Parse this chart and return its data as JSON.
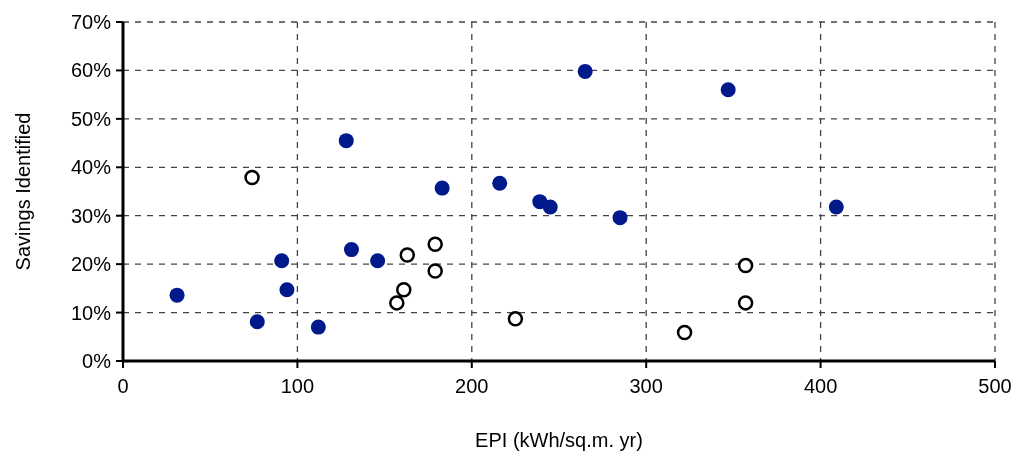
{
  "chart_data": {
    "type": "scatter",
    "xlabel": "EPI (kWh/sq.m. yr)",
    "ylabel": "Savings Identified",
    "xlim": [
      0,
      500
    ],
    "xticks": [
      0,
      100,
      200,
      300,
      400,
      500
    ],
    "ylim": [
      0,
      70
    ],
    "yticks": [
      {
        "value": 0,
        "label": "0%"
      },
      {
        "value": 10,
        "label": "10%"
      },
      {
        "value": 20,
        "label": "20%"
      },
      {
        "value": 30,
        "label": "30%"
      },
      {
        "value": 40,
        "label": "40%"
      },
      {
        "value": 50,
        "label": "50%"
      },
      {
        "value": 60,
        "label": "60%"
      },
      {
        "value": 70,
        "label": "70%"
      }
    ],
    "grid": true,
    "marker": "circle",
    "series": [
      {
        "color": "#001a8c",
        "x": [
          31,
          77,
          91,
          94,
          112,
          128,
          131,
          146,
          183,
          216,
          239,
          245,
          265,
          285,
          347,
          409
        ],
        "values": [
          13.6,
          8.1,
          20.7,
          14.7,
          7.0,
          45.5,
          23.0,
          20.7,
          35.7,
          36.7,
          32.9,
          31.8,
          59.8,
          29.6,
          56.0,
          31.8
        ]
      },
      {
        "color": "#ffffff",
        "x": [
          74,
          157,
          161,
          163,
          179,
          179,
          225,
          322,
          357,
          357
        ],
        "values": [
          37.9,
          12.0,
          14.7,
          21.9,
          24.1,
          18.6,
          8.7,
          5.9,
          19.7,
          12.0
        ]
      }
    ]
  }
}
